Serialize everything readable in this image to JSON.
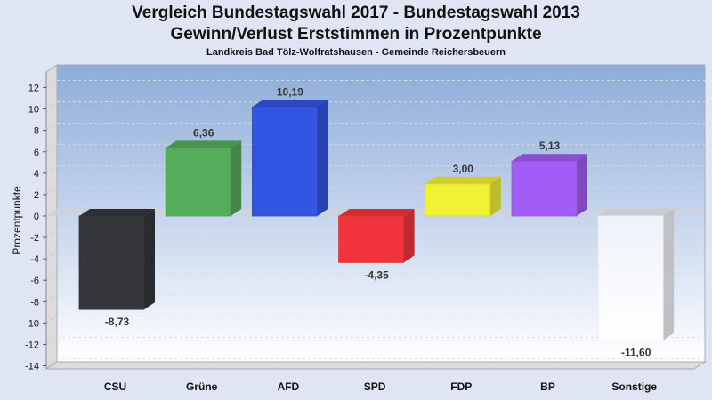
{
  "chart_data": {
    "type": "bar",
    "title": "Vergleich Bundestagswahl 2017 - Bundestagswahl 2013",
    "subtitle": "Gewinn/Verlust Erststimmen in Prozentpunkte",
    "subsubtitle": "Landkreis Bad Tölz-Wolfratshausen - Gemeinde Reichersbeuern",
    "xlabel": "",
    "ylabel": "Prozentpunkte",
    "ylim": [
      -14,
      13.5
    ],
    "yticks": [
      12,
      10,
      8,
      6,
      4,
      2,
      0,
      -2,
      -4,
      -6,
      -8,
      -10,
      -12,
      -14
    ],
    "grid": true,
    "categories": [
      "CSU",
      "Grüne",
      "AFD",
      "SPD",
      "FDP",
      "BP",
      "Sonstige"
    ],
    "values": [
      -8.73,
      6.36,
      10.19,
      -4.35,
      3.0,
      5.13,
      -11.6
    ],
    "value_labels": [
      "-8,73",
      "6,36",
      "10,19",
      "-4,35",
      "3,00",
      "5,13",
      "-11,60"
    ],
    "colors": [
      "#35373b",
      "#55ad5c",
      "#3355e3",
      "#f2353c",
      "#f1f235",
      "#a35cf5",
      "#f3f5fa"
    ]
  }
}
